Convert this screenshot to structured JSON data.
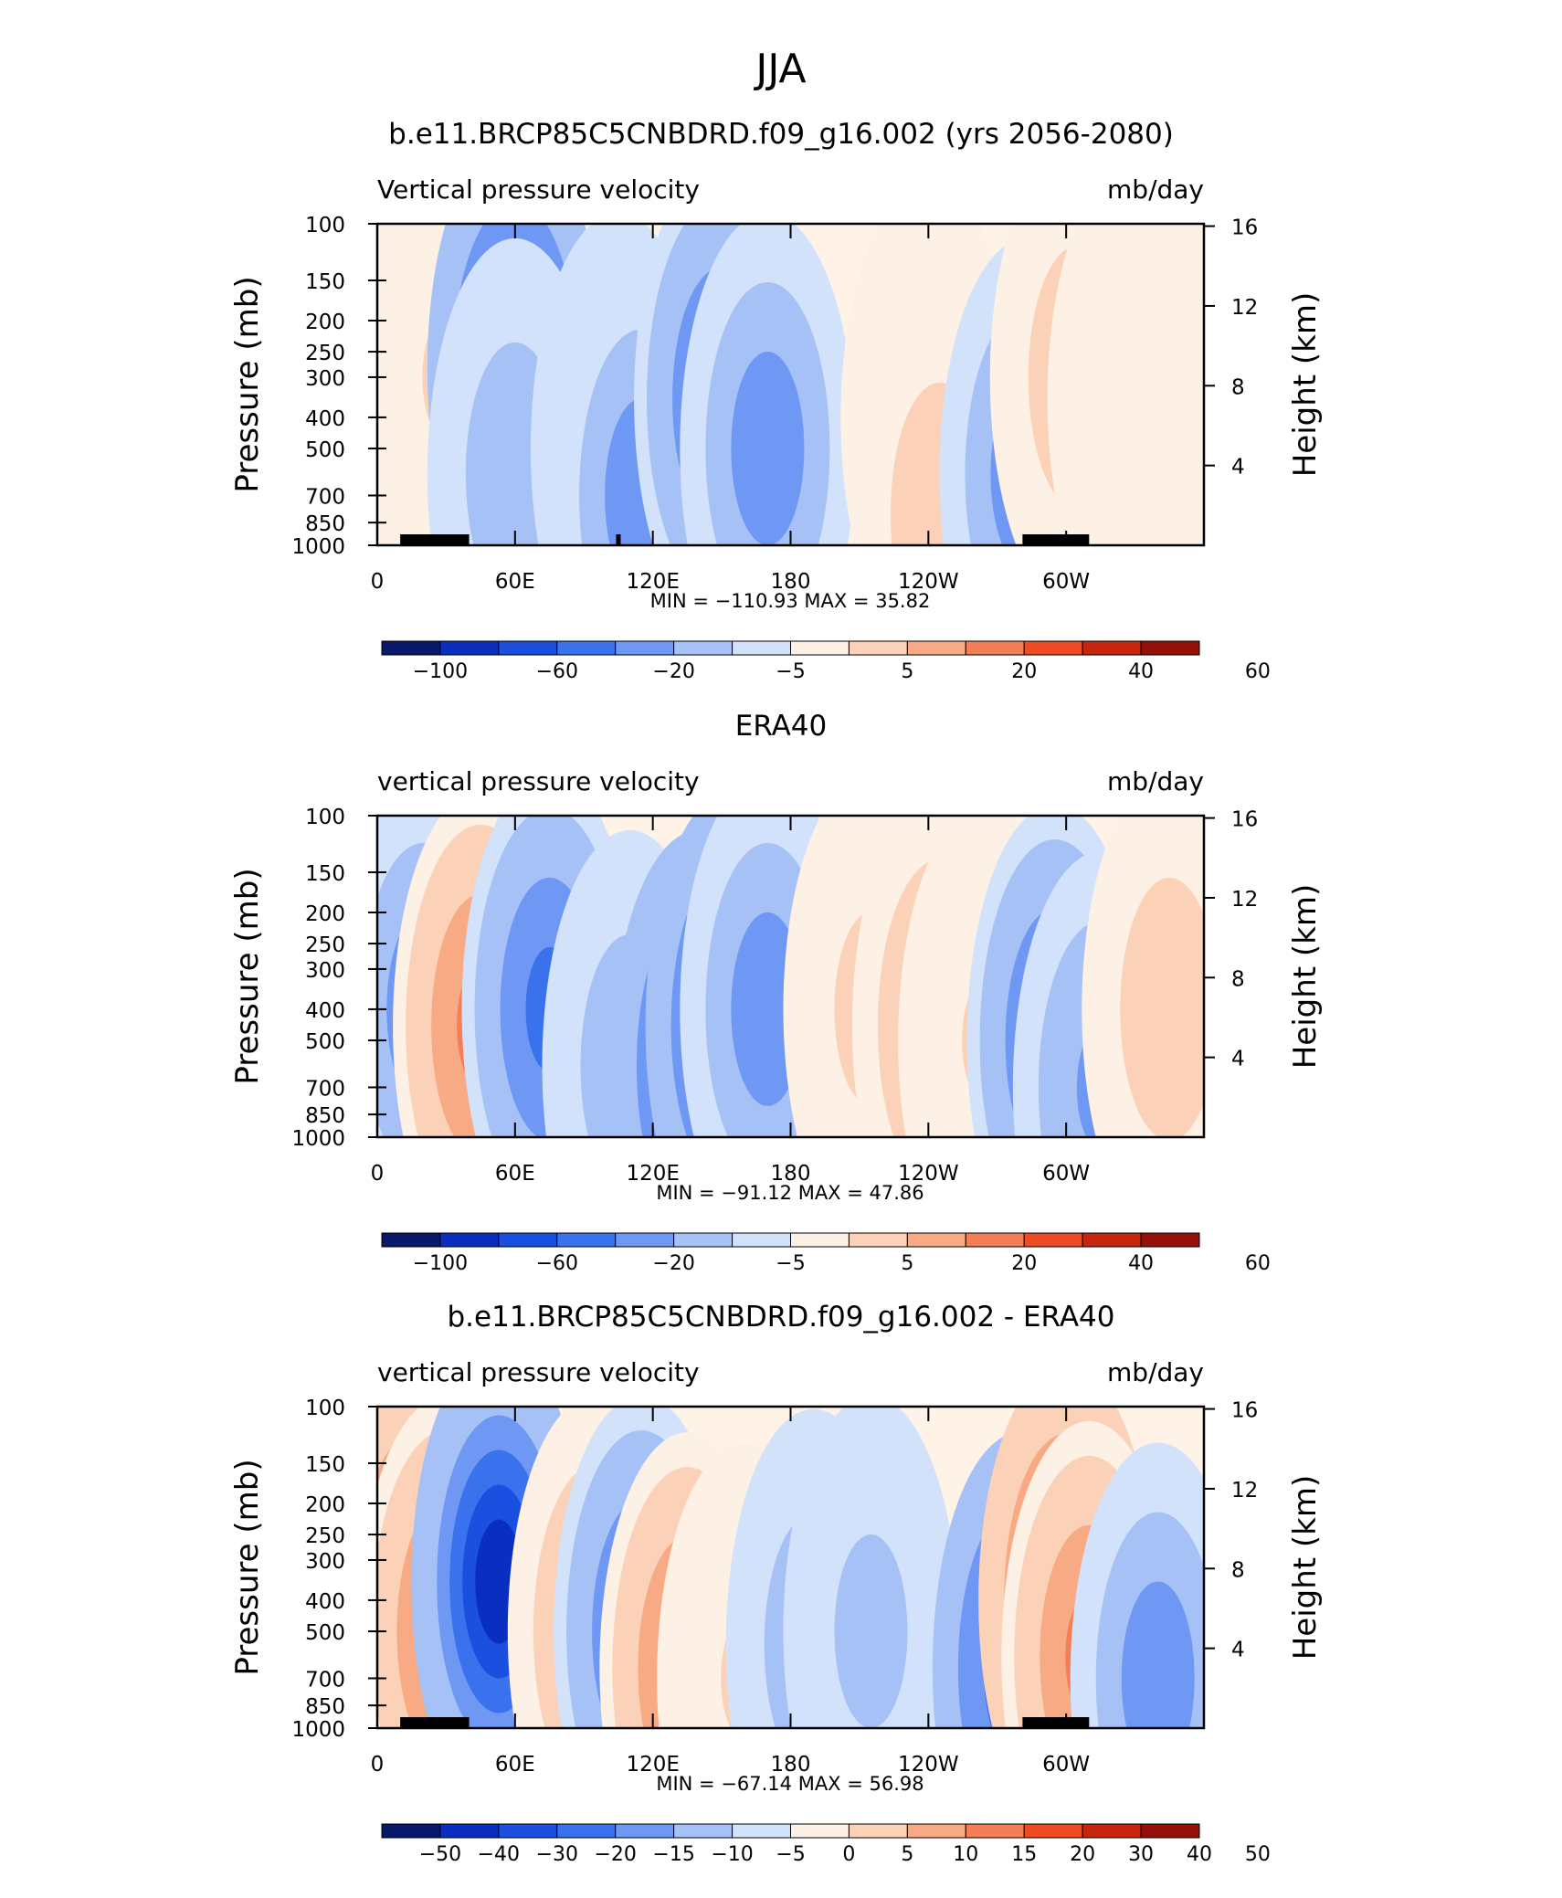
{
  "page_title": "JJA",
  "colors": {
    "blue_scale": [
      "#08186b",
      "#0a2fc0",
      "#1b4fe0",
      "#3a72ee",
      "#6e98f3",
      "#a6c1f6",
      "#d2e2fb"
    ],
    "red_scale": [
      "#fdf0e4",
      "#fbd2b8",
      "#f8aa84",
      "#f47e55",
      "#ee4b25",
      "#c8250f",
      "#96100a"
    ],
    "neutral": "#fff3e8",
    "land": "#000000"
  },
  "chart_data": [
    {
      "type": "heatmap",
      "title": "b.e11.BRCP85C5CNBDRD.f09_g16.002 (yrs 2056-2080)",
      "left_label": "Vertical pressure velocity",
      "right_label": "mb/day",
      "ylabel": "Pressure (mb)",
      "y2label": "Height (km)",
      "xticks": [
        "0",
        "60E",
        "120E",
        "180",
        "120W",
        "60W"
      ],
      "yticks": [
        "100",
        "150",
        "200",
        "250",
        "300",
        "400",
        "500",
        "700",
        "850",
        "1000"
      ],
      "y2ticks": [
        "16",
        "12",
        "8",
        "4"
      ],
      "stats": "MIN = −110.93   MAX =   35.82",
      "min": -110.93,
      "max": 35.82,
      "colorbar_labels": [
        "−100",
        "−60",
        "−20",
        "−5",
        "5",
        "20",
        "40",
        "60"
      ],
      "features": [
        {
          "lon": 8,
          "p": 300,
          "v": 12
        },
        {
          "lon": 30,
          "p": 300,
          "v": 18
        },
        {
          "lon": 60,
          "p": 280,
          "v": -70
        },
        {
          "lon": 60,
          "p": 600,
          "v": -25
        },
        {
          "lon": 105,
          "p": 500,
          "v": -15
        },
        {
          "lon": 115,
          "p": 700,
          "v": -40
        },
        {
          "lon": 150,
          "p": 350,
          "v": -55
        },
        {
          "lon": 170,
          "p": 500,
          "v": -45
        },
        {
          "lon": 240,
          "p": 400,
          "v": 20
        },
        {
          "lon": 245,
          "p": 800,
          "v": 25
        },
        {
          "lon": 283,
          "p": 600,
          "v": -45
        },
        {
          "lon": 305,
          "p": 300,
          "v": 28
        },
        {
          "lon": 330,
          "p": 350,
          "v": 12
        },
        {
          "lon": 355,
          "p": 500,
          "v": 15
        }
      ],
      "land": [
        [
          10,
          40
        ],
        [
          104,
          106
        ],
        [
          281,
          310
        ]
      ]
    },
    {
      "type": "heatmap",
      "title": "ERA40",
      "left_label": "vertical pressure velocity",
      "right_label": "mb/day",
      "ylabel": "Pressure (mb)",
      "y2label": "Height (km)",
      "xticks": [
        "0",
        "60E",
        "120E",
        "180",
        "120W",
        "60W"
      ],
      "yticks": [
        "100",
        "150",
        "200",
        "250",
        "300",
        "400",
        "500",
        "700",
        "850",
        "1000"
      ],
      "y2ticks": [
        "16",
        "12",
        "8",
        "4"
      ],
      "stats": "MIN = −91.12   MAX =   47.86",
      "min": -91.12,
      "max": 47.86,
      "colorbar_labels": [
        "−100",
        "−60",
        "−20",
        "−5",
        "5",
        "20",
        "40",
        "60"
      ],
      "features": [
        {
          "lon": 20,
          "p": 400,
          "v": -35
        },
        {
          "lon": 45,
          "p": 450,
          "v": 40
        },
        {
          "lon": 75,
          "p": 400,
          "v": -40
        },
        {
          "lon": 110,
          "p": 600,
          "v": -25
        },
        {
          "lon": 140,
          "p": 600,
          "v": -55
        },
        {
          "lon": 155,
          "p": 450,
          "v": -55
        },
        {
          "lon": 170,
          "p": 400,
          "v": -35
        },
        {
          "lon": 215,
          "p": 400,
          "v": 18
        },
        {
          "lon": 245,
          "p": 450,
          "v": 30
        },
        {
          "lon": 265,
          "p": 500,
          "v": 15
        },
        {
          "lon": 295,
          "p": 500,
          "v": -50
        },
        {
          "lon": 315,
          "p": 700,
          "v": -30
        },
        {
          "lon": 345,
          "p": 400,
          "v": 20
        }
      ],
      "land": []
    },
    {
      "type": "heatmap",
      "title": "b.e11.BRCP85C5CNBDRD.f09_g16.002 - ERA40",
      "left_label": "vertical pressure velocity",
      "right_label": "mb/day",
      "ylabel": "Pressure (mb)",
      "y2label": "Height (km)",
      "xticks": [
        "0",
        "60E",
        "120E",
        "180",
        "120W",
        "60W"
      ],
      "yticks": [
        "100",
        "150",
        "200",
        "250",
        "300",
        "400",
        "500",
        "700",
        "850",
        "1000"
      ],
      "y2ticks": [
        "16",
        "12",
        "8",
        "4"
      ],
      "stats": "MIN = −67.14   MAX =   56.98",
      "min": -67.14,
      "max": 56.98,
      "colorbar_labels": [
        "−50",
        "−40",
        "−30",
        "−20",
        "−15",
        "−10",
        "−5",
        "0",
        "5",
        "10",
        "15",
        "20",
        "30",
        "40",
        "50"
      ],
      "features": [
        {
          "lon": 17,
          "p": 400,
          "v": 40
        },
        {
          "lon": 30,
          "p": 500,
          "v": 30
        },
        {
          "lon": 53,
          "p": 350,
          "v": -50
        },
        {
          "lon": 95,
          "p": 500,
          "v": 25
        },
        {
          "lon": 115,
          "p": 500,
          "v": -35
        },
        {
          "lon": 135,
          "p": 650,
          "v": 30
        },
        {
          "lon": 160,
          "p": 700,
          "v": 10
        },
        {
          "lon": 190,
          "p": 550,
          "v": -18
        },
        {
          "lon": 215,
          "p": 500,
          "v": -12
        },
        {
          "lon": 280,
          "p": 650,
          "v": -40
        },
        {
          "lon": 300,
          "p": 400,
          "v": 45
        },
        {
          "lon": 310,
          "p": 600,
          "v": 30
        },
        {
          "lon": 340,
          "p": 700,
          "v": -25
        }
      ],
      "land": [
        [
          10,
          40
        ],
        [
          281,
          310
        ]
      ]
    }
  ]
}
